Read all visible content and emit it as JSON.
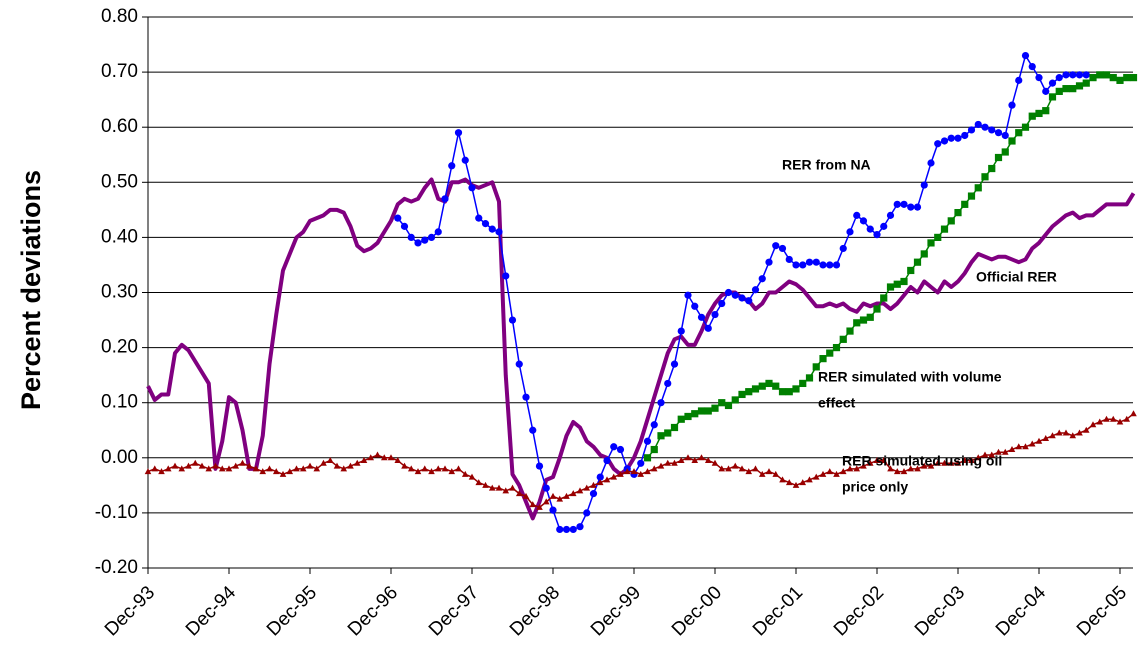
{
  "chart_data": {
    "type": "line",
    "y_label": "Percent deviations",
    "categories": [
      "Dec-93",
      null,
      null,
      null,
      null,
      null,
      null,
      null,
      null,
      null,
      null,
      null,
      "Dec-94",
      null,
      null,
      null,
      null,
      null,
      null,
      null,
      null,
      null,
      null,
      null,
      "Dec-95",
      null,
      null,
      null,
      null,
      null,
      null,
      null,
      null,
      null,
      null,
      null,
      "Dec-96",
      null,
      null,
      null,
      null,
      null,
      null,
      null,
      null,
      null,
      null,
      null,
      "Dec-97",
      null,
      null,
      null,
      null,
      null,
      null,
      null,
      null,
      null,
      null,
      null,
      "Dec-98",
      null,
      null,
      null,
      null,
      null,
      null,
      null,
      null,
      null,
      null,
      null,
      "Dec-99",
      null,
      null,
      null,
      null,
      null,
      null,
      null,
      null,
      null,
      null,
      null,
      "Dec-00",
      null,
      null,
      null,
      null,
      null,
      null,
      null,
      null,
      null,
      null,
      null,
      "Dec-01",
      null,
      null,
      null,
      null,
      null,
      null,
      null,
      null,
      null,
      null,
      null,
      "Dec-02",
      null,
      null,
      null,
      null,
      null,
      null,
      null,
      null,
      null,
      null,
      null,
      "Dec-03",
      null,
      null,
      null,
      null,
      null,
      null,
      null,
      null,
      null,
      null,
      null,
      "Dec-04",
      null,
      null,
      null,
      null,
      null,
      null,
      null,
      null,
      null,
      null,
      null,
      "Dec-05",
      null,
      null
    ],
    "ylim": [
      -0.2,
      0.8
    ],
    "yticks": [
      {
        "value": -0.2,
        "label": "-0.20"
      },
      {
        "value": -0.1,
        "label": "-0.10"
      },
      {
        "value": 0,
        "label": "0.00"
      },
      {
        "value": 0.1,
        "label": "0.10"
      },
      {
        "value": 0.2,
        "label": "0.20"
      },
      {
        "value": 0.3,
        "label": "0.30"
      },
      {
        "value": 0.4,
        "label": "0.40"
      },
      {
        "value": 0.5,
        "label": "0.50"
      },
      {
        "value": 0.6,
        "label": "0.60"
      },
      {
        "value": 0.7,
        "label": "0.70"
      },
      {
        "value": 0.8,
        "label": "0.80"
      }
    ],
    "grid": true,
    "series": [
      {
        "color": "#800080",
        "marker": "none",
        "values": [
          0.13,
          0.105,
          0.115,
          0.115,
          0.19,
          0.205,
          0.195,
          0.175,
          0.155,
          0.135,
          -0.02,
          0.03,
          0.11,
          0.1,
          0.05,
          -0.02,
          -0.02,
          0.04,
          0.17,
          0.26,
          0.34,
          0.37,
          0.4,
          0.41,
          0.43,
          0.435,
          0.44,
          0.45,
          0.45,
          0.445,
          0.42,
          0.385,
          0.375,
          0.38,
          0.39,
          0.41,
          0.43,
          0.46,
          0.47,
          0.465,
          0.47,
          0.49,
          0.505,
          0.47,
          0.465,
          0.5,
          0.5,
          0.505,
          0.495,
          0.49,
          0.495,
          0.5,
          0.465,
          0.15,
          -0.03,
          -0.05,
          -0.08,
          -0.11,
          -0.08,
          -0.04,
          -0.035,
          0.0,
          0.04,
          0.065,
          0.055,
          0.03,
          0.02,
          0.005,
          0.0,
          -0.02,
          -0.03,
          -0.02,
          0.0,
          0.03,
          0.07,
          0.11,
          0.15,
          0.19,
          0.215,
          0.22,
          0.205,
          0.205,
          0.23,
          0.26,
          0.28,
          0.295,
          0.3,
          0.3,
          0.29,
          0.285,
          0.27,
          0.28,
          0.3,
          0.3,
          0.31,
          0.32,
          0.315,
          0.305,
          0.29,
          0.275,
          0.275,
          0.28,
          0.275,
          0.28,
          0.27,
          0.265,
          0.28,
          0.275,
          0.28,
          0.28,
          0.27,
          0.28,
          0.295,
          0.31,
          0.3,
          0.32,
          0.31,
          0.3,
          0.32,
          0.31,
          0.32,
          0.335,
          0.355,
          0.37,
          0.365,
          0.36,
          0.365,
          0.365,
          0.36,
          0.355,
          0.36,
          0.38,
          0.39,
          0.405,
          0.42,
          0.43,
          0.44,
          0.445,
          0.435,
          0.44,
          0.44,
          0.45,
          0.46,
          0.46,
          0.46,
          0.46,
          0.48
        ]
      },
      {
        "color": "#0000ff",
        "marker": "circle",
        "values": [
          null,
          null,
          null,
          null,
          null,
          null,
          null,
          null,
          null,
          null,
          null,
          null,
          null,
          null,
          null,
          null,
          null,
          null,
          null,
          null,
          null,
          null,
          null,
          null,
          null,
          null,
          null,
          null,
          null,
          null,
          null,
          null,
          null,
          null,
          null,
          null,
          null,
          0.435,
          0.42,
          0.4,
          0.39,
          0.395,
          0.4,
          0.41,
          0.47,
          0.53,
          0.59,
          0.54,
          0.49,
          0.435,
          0.425,
          0.415,
          0.41,
          0.33,
          0.25,
          0.17,
          0.11,
          0.05,
          -0.015,
          -0.055,
          -0.095,
          -0.13,
          -0.13,
          -0.13,
          -0.125,
          -0.1,
          -0.065,
          -0.035,
          -0.005,
          0.02,
          0.015,
          -0.02,
          -0.03,
          -0.01,
          0.03,
          0.06,
          0.1,
          0.135,
          0.17,
          0.23,
          0.295,
          0.275,
          0.255,
          0.235,
          0.26,
          0.28,
          0.3,
          0.295,
          0.29,
          0.285,
          0.305,
          0.325,
          0.355,
          0.385,
          0.38,
          0.36,
          0.35,
          0.35,
          0.355,
          0.355,
          0.35,
          0.35,
          0.35,
          0.38,
          0.41,
          0.44,
          0.43,
          0.415,
          0.405,
          0.42,
          0.44,
          0.46,
          0.46,
          0.455,
          0.455,
          0.495,
          0.535,
          0.57,
          0.575,
          0.58,
          0.58,
          0.585,
          0.595,
          0.605,
          0.6,
          0.595,
          0.59,
          0.585,
          0.64,
          0.685,
          0.73,
          0.71,
          0.69,
          0.665,
          0.68,
          0.69,
          0.695,
          0.695,
          0.695,
          0.695,
          null,
          null,
          null,
          null,
          null,
          null,
          null
        ]
      },
      {
        "color": "#008000",
        "marker": "square",
        "values": [
          null,
          null,
          null,
          null,
          null,
          null,
          null,
          null,
          null,
          null,
          null,
          null,
          null,
          null,
          null,
          null,
          null,
          null,
          null,
          null,
          null,
          null,
          null,
          null,
          null,
          null,
          null,
          null,
          null,
          null,
          null,
          null,
          null,
          null,
          null,
          null,
          null,
          null,
          null,
          null,
          null,
          null,
          null,
          null,
          null,
          null,
          null,
          null,
          null,
          null,
          null,
          null,
          null,
          null,
          null,
          null,
          null,
          null,
          null,
          null,
          null,
          null,
          null,
          null,
          null,
          null,
          null,
          null,
          null,
          null,
          null,
          null,
          null,
          null,
          0.0,
          0.015,
          0.04,
          0.045,
          0.055,
          0.07,
          0.075,
          0.08,
          0.085,
          0.085,
          0.09,
          0.1,
          0.095,
          0.105,
          0.115,
          0.12,
          0.125,
          0.13,
          0.135,
          0.13,
          0.12,
          0.12,
          0.125,
          0.135,
          0.145,
          0.165,
          0.18,
          0.19,
          0.2,
          0.215,
          0.23,
          0.245,
          0.25,
          0.255,
          0.27,
          0.29,
          0.31,
          0.315,
          0.32,
          0.34,
          0.355,
          0.37,
          0.39,
          0.4,
          0.415,
          0.43,
          0.445,
          0.46,
          0.475,
          0.49,
          0.51,
          0.525,
          0.545,
          0.555,
          0.575,
          0.59,
          0.6,
          0.62,
          0.625,
          0.63,
          0.655,
          0.665,
          0.67,
          0.67,
          0.675,
          0.68,
          0.69,
          0.695,
          0.695,
          0.69,
          0.685,
          0.69,
          0.69
        ]
      },
      {
        "color": "#990000",
        "marker": "triangle",
        "values": [
          -0.025,
          -0.02,
          -0.025,
          -0.02,
          -0.015,
          -0.02,
          -0.015,
          -0.01,
          -0.015,
          -0.02,
          -0.015,
          -0.02,
          -0.02,
          -0.015,
          -0.01,
          -0.015,
          -0.02,
          -0.025,
          -0.02,
          -0.025,
          -0.03,
          -0.025,
          -0.02,
          -0.02,
          -0.015,
          -0.02,
          -0.01,
          -0.005,
          -0.015,
          -0.02,
          -0.015,
          -0.01,
          -0.005,
          0.0,
          0.005,
          0.0,
          0.0,
          -0.005,
          -0.015,
          -0.02,
          -0.025,
          -0.02,
          -0.025,
          -0.02,
          -0.02,
          -0.025,
          -0.02,
          -0.03,
          -0.035,
          -0.045,
          -0.05,
          -0.055,
          -0.055,
          -0.06,
          -0.055,
          -0.065,
          -0.07,
          -0.085,
          -0.09,
          -0.08,
          -0.07,
          -0.075,
          -0.07,
          -0.065,
          -0.06,
          -0.055,
          -0.05,
          -0.045,
          -0.04,
          -0.035,
          -0.03,
          -0.025,
          -0.025,
          -0.03,
          -0.025,
          -0.02,
          -0.015,
          -0.01,
          -0.01,
          -0.005,
          0.0,
          -0.005,
          0.0,
          -0.005,
          -0.01,
          -0.02,
          -0.02,
          -0.015,
          -0.02,
          -0.025,
          -0.02,
          -0.03,
          -0.025,
          -0.03,
          -0.04,
          -0.045,
          -0.05,
          -0.045,
          -0.04,
          -0.035,
          -0.03,
          -0.025,
          -0.03,
          -0.025,
          -0.02,
          -0.02,
          -0.015,
          -0.01,
          -0.005,
          -0.005,
          -0.02,
          -0.025,
          -0.025,
          -0.02,
          -0.02,
          -0.015,
          -0.015,
          -0.01,
          -0.01,
          -0.01,
          -0.01,
          -0.005,
          -0.005,
          0.0,
          0.005,
          0.005,
          0.01,
          0.01,
          0.015,
          0.02,
          0.02,
          0.025,
          0.03,
          0.035,
          0.04,
          0.045,
          0.045,
          0.04,
          0.045,
          0.05,
          0.06,
          0.065,
          0.07,
          0.07,
          0.065,
          0.07,
          0.08
        ]
      }
    ],
    "annotations": [
      {
        "lines": [
          "RER from NA"
        ]
      },
      {
        "lines": [
          "Official RER"
        ]
      },
      {
        "lines": [
          "RER simulated with volume",
          "effect"
        ]
      },
      {
        "lines": [
          "RER simulated using oil",
          "price only"
        ]
      }
    ]
  }
}
